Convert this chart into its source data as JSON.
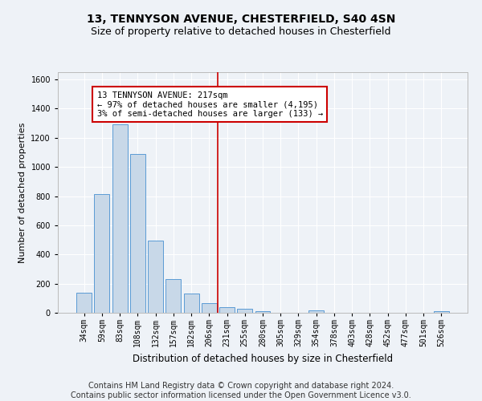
{
  "title": "13, TENNYSON AVENUE, CHESTERFIELD, S40 4SN",
  "subtitle": "Size of property relative to detached houses in Chesterfield",
  "xlabel": "Distribution of detached houses by size in Chesterfield",
  "ylabel": "Number of detached properties",
  "footer_line1": "Contains HM Land Registry data © Crown copyright and database right 2024.",
  "footer_line2": "Contains public sector information licensed under the Open Government Licence v3.0.",
  "bar_labels": [
    "34sqm",
    "59sqm",
    "83sqm",
    "108sqm",
    "132sqm",
    "157sqm",
    "182sqm",
    "206sqm",
    "231sqm",
    "255sqm",
    "280sqm",
    "305sqm",
    "329sqm",
    "354sqm",
    "378sqm",
    "403sqm",
    "428sqm",
    "452sqm",
    "477sqm",
    "501sqm",
    "526sqm"
  ],
  "bar_values": [
    140,
    815,
    1295,
    1090,
    495,
    232,
    130,
    65,
    40,
    28,
    10,
    0,
    0,
    18,
    0,
    0,
    0,
    0,
    0,
    0,
    12
  ],
  "bar_color": "#c8d8e8",
  "bar_edgecolor": "#5b9bd5",
  "annotation_text_line1": "13 TENNYSON AVENUE: 217sqm",
  "annotation_text_line2": "← 97% of detached houses are smaller (4,195)",
  "annotation_text_line3": "3% of semi-detached houses are larger (133) →",
  "annotation_box_facecolor": "#ffffff",
  "annotation_box_edgecolor": "#cc0000",
  "vline_color": "#cc0000",
  "vline_x": 7.5,
  "ylim": [
    0,
    1650
  ],
  "yticks": [
    0,
    200,
    400,
    600,
    800,
    1000,
    1200,
    1400,
    1600
  ],
  "background_color": "#eef2f7",
  "grid_color": "#ffffff",
  "title_fontsize": 10,
  "subtitle_fontsize": 9,
  "xlabel_fontsize": 8.5,
  "ylabel_fontsize": 8,
  "tick_fontsize": 7,
  "annotation_fontsize": 7.5,
  "footer_fontsize": 7
}
